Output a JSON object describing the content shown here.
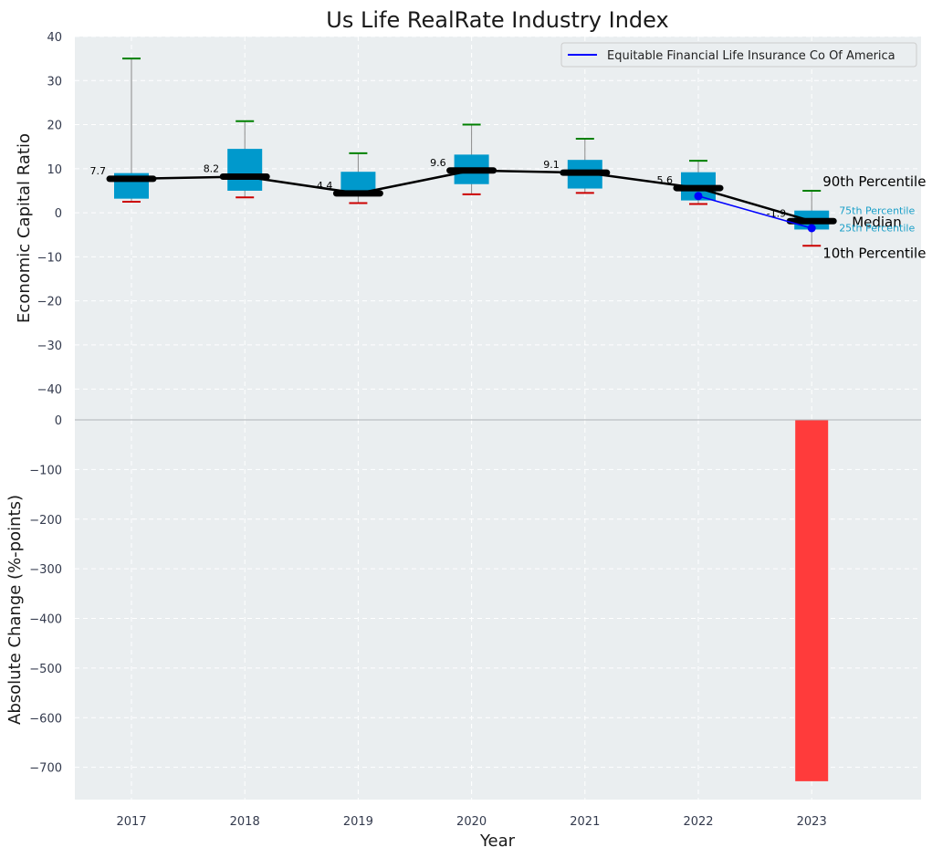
{
  "chart_data": [
    {
      "type": "box",
      "title": "Us Life RealRate Industry Index",
      "xlabel": "",
      "ylabel": "Economic Capital Ratio",
      "ylim": [
        -47,
        40
      ],
      "yticks": [
        40,
        30,
        20,
        10,
        0,
        -10,
        -20,
        -30,
        -40
      ],
      "x": [
        "2017",
        "2018",
        "2019",
        "2020",
        "2021",
        "2022",
        "2023"
      ],
      "boxes": [
        {
          "year": "2017",
          "p10": 2.5,
          "q1": 3.2,
          "median": 7.7,
          "q3": 9.0,
          "p90": 35.0
        },
        {
          "year": "2018",
          "p10": 3.5,
          "q1": 5.0,
          "median": 8.2,
          "q3": 14.5,
          "p90": 20.8
        },
        {
          "year": "2019",
          "p10": 2.2,
          "q1": 3.8,
          "median": 4.4,
          "q3": 9.3,
          "p90": 13.5
        },
        {
          "year": "2020",
          "p10": 4.2,
          "q1": 6.5,
          "median": 9.6,
          "q3": 13.2,
          "p90": 20.0
        },
        {
          "year": "2021",
          "p10": 4.5,
          "q1": 5.5,
          "median": 9.1,
          "q3": 12.0,
          "p90": 16.8
        },
        {
          "year": "2022",
          "p10": 2.0,
          "q1": 2.8,
          "median": 5.6,
          "q3": 9.2,
          "p90": 11.8
        },
        {
          "year": "2023",
          "p10": -7.5,
          "q1": -3.8,
          "median": -1.9,
          "q3": 0.5,
          "p90": 5.0
        }
      ],
      "median_labels": [
        "7.7",
        "8.2",
        "4.4",
        "9.6",
        "9.1",
        "5.6",
        "-1.9"
      ],
      "series": [
        {
          "name": "Equitable Financial Life Insurance Co Of America",
          "x": [
            "2022",
            "2023"
          ],
          "values": [
            3.8,
            -3.5
          ]
        }
      ],
      "legend_position": "top-right",
      "percentile_labels": {
        "p90": "90th Percentile",
        "q3": "75th Percentile",
        "median": "Median",
        "q1": "25th Percentile",
        "p10": "10th Percentile"
      },
      "grid": true
    },
    {
      "type": "bar",
      "xlabel": "Year",
      "ylabel": "Absolute Change (%-points)",
      "ylim": [
        -765,
        0
      ],
      "yticks": [
        0,
        -100,
        -200,
        -300,
        -400,
        -500,
        -600,
        -700
      ],
      "categories": [
        "2017",
        "2018",
        "2019",
        "2020",
        "2021",
        "2022",
        "2023"
      ],
      "values": [
        null,
        null,
        null,
        null,
        null,
        null,
        -728
      ],
      "grid": true
    }
  ],
  "colors": {
    "plot_bg": "#eaeef0",
    "box": "#0099cc",
    "median_line": "#000000",
    "company_line": "#0000ff",
    "p90_whisker": "#008000",
    "p10_whisker": "#cc0000",
    "bar": "#ff3b3b",
    "grid": "#ffffff"
  }
}
